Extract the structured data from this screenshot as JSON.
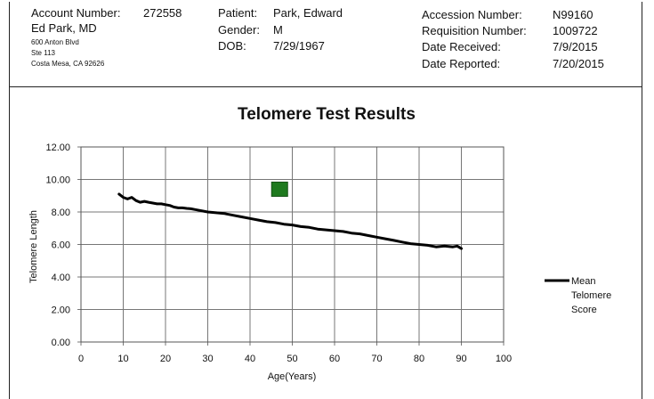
{
  "header": {
    "account_label": "Account Number:",
    "account_value": "272558",
    "doctor": "Ed Park, MD",
    "address1": "600 Anton Blvd",
    "address2": "Ste 113",
    "address3": "Costa Mesa, CA 92626",
    "patient_label": "Patient:",
    "patient_value": "Park, Edward",
    "gender_label": "Gender:",
    "gender_value": "M",
    "dob_label": "DOB:",
    "dob_value": "7/29/1967",
    "accession_label": "Accession Number:",
    "accession_value": "N99160",
    "requisition_label": "Requisition Number:",
    "requisition_value": "1009722",
    "received_label": "Date Received:",
    "received_value": "7/9/2015",
    "reported_label": "Date Reported:",
    "reported_value": "7/20/2015"
  },
  "chart_data": {
    "type": "line",
    "title": "Telomere Test Results",
    "xlabel": "Age(Years)",
    "ylabel": "Telomere Length",
    "xlim": [
      0,
      100
    ],
    "ylim": [
      0,
      12
    ],
    "xticks": [
      "0",
      "10",
      "20",
      "30",
      "40",
      "50",
      "60",
      "70",
      "80",
      "90",
      "100"
    ],
    "yticks": [
      "0.00",
      "2.00",
      "4.00",
      "6.00",
      "8.00",
      "10.00",
      "12.00"
    ],
    "grid": true,
    "legend_position": "right",
    "series": [
      {
        "name": "Mean Telomere Score",
        "color": "#000000",
        "x": [
          9,
          10,
          11,
          12,
          13,
          14,
          15,
          16,
          17,
          18,
          19,
          20,
          21,
          22,
          23,
          24,
          25,
          26,
          27,
          28,
          29,
          30,
          32,
          34,
          36,
          38,
          40,
          42,
          44,
          46,
          48,
          50,
          52,
          54,
          56,
          58,
          60,
          62,
          64,
          66,
          68,
          70,
          72,
          74,
          76,
          78,
          80,
          82,
          84,
          86,
          88,
          89,
          90
        ],
        "y": [
          9.1,
          8.9,
          8.8,
          8.9,
          8.7,
          8.6,
          8.65,
          8.6,
          8.55,
          8.5,
          8.5,
          8.45,
          8.4,
          8.3,
          8.25,
          8.25,
          8.22,
          8.2,
          8.15,
          8.1,
          8.05,
          8.0,
          7.95,
          7.9,
          7.8,
          7.7,
          7.6,
          7.5,
          7.4,
          7.35,
          7.25,
          7.2,
          7.1,
          7.05,
          6.95,
          6.9,
          6.85,
          6.8,
          6.7,
          6.65,
          6.55,
          6.45,
          6.35,
          6.25,
          6.15,
          6.05,
          6.0,
          5.95,
          5.85,
          5.9,
          5.85,
          5.9,
          5.75
        ]
      },
      {
        "name": "",
        "type": "marker",
        "color": "#1e7a1e",
        "x": [
          47
        ],
        "y": [
          9.4
        ]
      }
    ]
  }
}
